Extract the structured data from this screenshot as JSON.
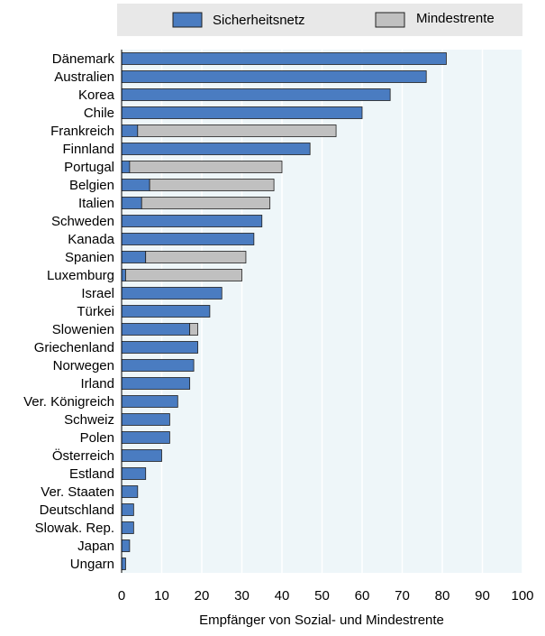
{
  "chart_data": {
    "type": "bar",
    "orientation": "horizontal",
    "stacked": true,
    "title": "",
    "xlabel": "Empfänger von Sozial- und Mindestrente",
    "ylabel": "",
    "xlim": [
      0,
      100
    ],
    "xticks": [
      "0",
      "10",
      "20",
      "30",
      "40",
      "50",
      "60",
      "70",
      "80",
      "90",
      "100"
    ],
    "grid": true,
    "legend_position": "top",
    "categories": [
      "Dänemark",
      "Australien",
      "Korea",
      "Chile",
      "Frankreich",
      "Finnland",
      "Portugal",
      "Belgien",
      "Italien",
      "Schweden",
      "Kanada",
      "Spanien",
      "Luxemburg",
      "Israel",
      "Türkei",
      "Slowenien",
      "Griechenland",
      "Norwegen",
      "Irland",
      "Ver. Königreich",
      "Schweiz",
      "Polen",
      "Österreich",
      "Estland",
      "Ver. Staaten",
      "Deutschland",
      "Slowak. Rep.",
      "Japan",
      "Ungarn"
    ],
    "series": [
      {
        "name": "Sicherheitsnetz",
        "color": "#4a7cc1",
        "values": [
          81,
          76,
          67,
          60,
          4,
          47,
          2,
          7,
          5,
          35,
          33,
          6,
          1,
          25,
          22,
          17,
          19,
          18,
          17,
          14,
          12,
          12,
          10,
          6,
          4,
          3,
          3,
          2,
          1
        ]
      },
      {
        "name": "Mindestrente",
        "color": "#c0c0c0",
        "values": [
          0,
          0,
          0,
          0,
          49.5,
          0,
          38,
          31,
          32,
          0,
          0,
          25,
          29,
          0,
          0,
          2,
          0,
          0,
          0,
          0,
          0,
          0,
          0,
          0,
          0,
          0,
          0,
          0,
          0
        ]
      }
    ]
  }
}
